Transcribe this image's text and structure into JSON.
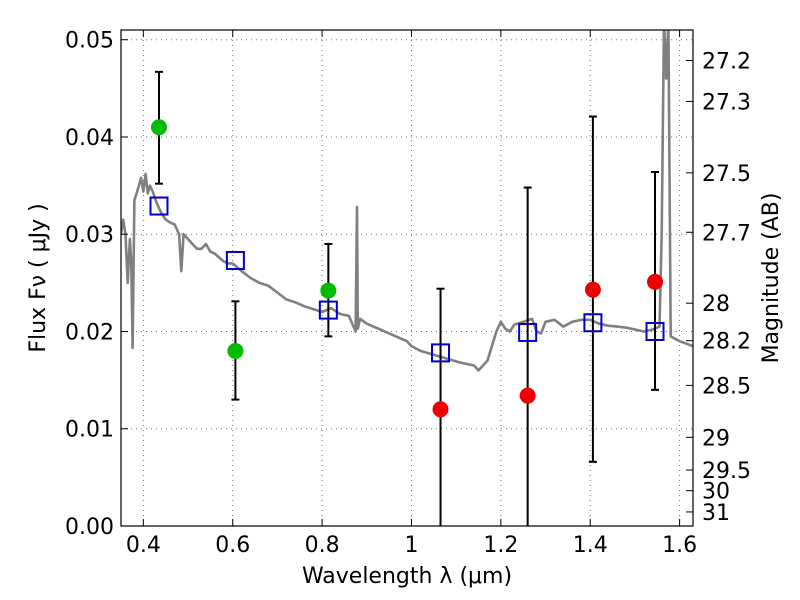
{
  "chart_data": {
    "type": "scatter",
    "xlabel": "Wavelength  λ (μm)",
    "ylabel": "Flux  Fν  ( μJy )",
    "y2label": "Magnitude (AB)",
    "xlim": [
      0.35,
      1.63
    ],
    "ylim": [
      0.0,
      0.051
    ],
    "x_ticks": [
      0.4,
      0.6,
      0.8,
      1.0,
      1.2,
      1.4,
      1.6
    ],
    "x_tick_labels": [
      "0.4",
      "0.6",
      "0.8",
      "1",
      "1.2",
      "1.4",
      "1.6"
    ],
    "y_ticks": [
      0.0,
      0.01,
      0.02,
      0.03,
      0.04,
      0.05
    ],
    "y_tick_labels": [
      "0.00",
      "0.01",
      "0.02",
      "0.03",
      "0.04",
      "0.05"
    ],
    "mag_ticks": [
      27.2,
      27.3,
      27.5,
      27.7,
      28,
      28.2,
      28.5,
      29,
      29.5,
      30,
      31
    ],
    "mag_tick_labels": [
      "27.2",
      "27.3",
      "27.5",
      "27.7",
      "28",
      "28.2",
      "28.5",
      "29",
      "29.5",
      "30",
      "31"
    ],
    "grid": true,
    "colors": {
      "model": "#808080",
      "green": "#00bb00",
      "red": "#ee0000",
      "squares": "#0000cc",
      "errorbar": "#000000"
    },
    "series": [
      {
        "marker": "circle-green",
        "points": [
          {
            "x": 0.435,
            "y": 0.041,
            "yerr_low": 0.0352,
            "yerr_high": 0.0467
          },
          {
            "x": 0.606,
            "y": 0.018,
            "yerr_low": 0.013,
            "yerr_high": 0.0231
          },
          {
            "x": 0.814,
            "y": 0.0242,
            "yerr_low": 0.0195,
            "yerr_high": 0.029
          }
        ]
      },
      {
        "marker": "circle-red",
        "points": [
          {
            "x": 1.065,
            "y": 0.012,
            "yerr_low": 0.0,
            "yerr_high": 0.0244
          },
          {
            "x": 1.26,
            "y": 0.0134,
            "yerr_low": 0.0,
            "yerr_high": 0.0348
          },
          {
            "x": 1.406,
            "y": 0.0243,
            "yerr_low": 0.0066,
            "yerr_high": 0.0421
          },
          {
            "x": 1.545,
            "y": 0.0251,
            "yerr_low": 0.014,
            "yerr_high": 0.0364
          }
        ]
      },
      {
        "marker": "square-blue",
        "points": [
          {
            "x": 0.435,
            "y": 0.0329
          },
          {
            "x": 0.606,
            "y": 0.0273
          },
          {
            "x": 0.814,
            "y": 0.0222
          },
          {
            "x": 1.065,
            "y": 0.0178
          },
          {
            "x": 1.26,
            "y": 0.0199
          },
          {
            "x": 1.406,
            "y": 0.0209
          },
          {
            "x": 1.545,
            "y": 0.02
          }
        ]
      },
      {
        "type": "line",
        "marker": "model-sed",
        "x": [
          0.35,
          0.355,
          0.36,
          0.365,
          0.37,
          0.373,
          0.376,
          0.38,
          0.385,
          0.39,
          0.395,
          0.4,
          0.405,
          0.41,
          0.415,
          0.42,
          0.43,
          0.44,
          0.45,
          0.46,
          0.47,
          0.48,
          0.485,
          0.49,
          0.5,
          0.51,
          0.52,
          0.53,
          0.54,
          0.55,
          0.56,
          0.57,
          0.58,
          0.59,
          0.6,
          0.62,
          0.64,
          0.66,
          0.68,
          0.7,
          0.72,
          0.74,
          0.76,
          0.78,
          0.8,
          0.82,
          0.84,
          0.86,
          0.875,
          0.878,
          0.88,
          0.885,
          0.9,
          0.93,
          0.96,
          0.99,
          1.0,
          1.02,
          1.05,
          1.08,
          1.11,
          1.14,
          1.15,
          1.17,
          1.19,
          1.2,
          1.21,
          1.22,
          1.23,
          1.25,
          1.27,
          1.28,
          1.29,
          1.3,
          1.32,
          1.34,
          1.36,
          1.38,
          1.4,
          1.42,
          1.44,
          1.46,
          1.48,
          1.5,
          1.52,
          1.54,
          1.555,
          1.56,
          1.565,
          1.57,
          1.575,
          1.58,
          1.6,
          1.63
        ],
        "y": [
          0.03,
          0.0315,
          0.03,
          0.025,
          0.0295,
          0.027,
          0.0183,
          0.0335,
          0.0342,
          0.035,
          0.0358,
          0.0344,
          0.0362,
          0.0342,
          0.035,
          0.0345,
          0.0332,
          0.0322,
          0.0315,
          0.0312,
          0.031,
          0.03,
          0.0262,
          0.03,
          0.0295,
          0.029,
          0.0285,
          0.0285,
          0.029,
          0.0282,
          0.028,
          0.0276,
          0.0272,
          0.027,
          0.027,
          0.0262,
          0.0255,
          0.025,
          0.0247,
          0.024,
          0.0233,
          0.023,
          0.0226,
          0.0223,
          0.022,
          0.0224,
          0.0218,
          0.0216,
          0.02,
          0.0328,
          0.0203,
          0.0213,
          0.0208,
          0.0202,
          0.0196,
          0.019,
          0.0185,
          0.018,
          0.0176,
          0.0172,
          0.0168,
          0.0165,
          0.016,
          0.017,
          0.02,
          0.021,
          0.0203,
          0.02,
          0.0207,
          0.021,
          0.0213,
          0.02,
          0.0198,
          0.021,
          0.0212,
          0.0205,
          0.021,
          0.0212,
          0.0212,
          0.0208,
          0.0206,
          0.0205,
          0.0204,
          0.0202,
          0.02,
          0.0202,
          0.0205,
          0.03,
          0.052,
          0.046,
          0.052,
          0.0195,
          0.019,
          0.0185
        ]
      }
    ]
  }
}
